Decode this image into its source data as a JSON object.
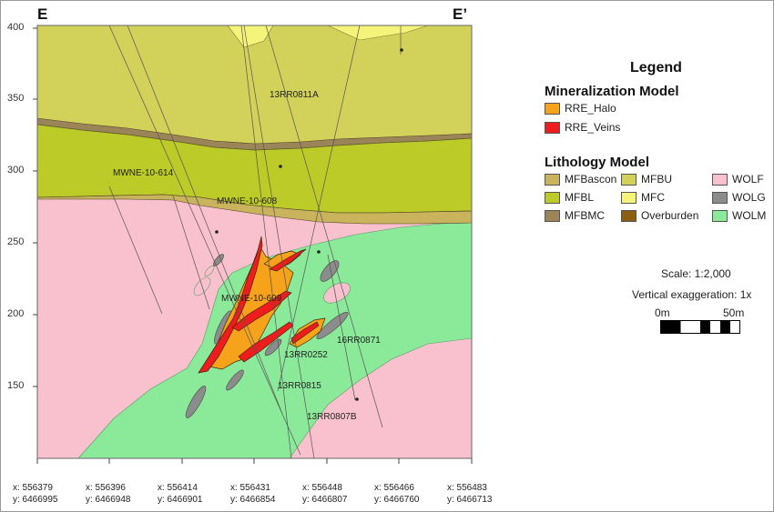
{
  "section": {
    "left_label": "E",
    "right_label": "E’"
  },
  "y_axis": {
    "ticks": [
      "400",
      "350",
      "300",
      "250",
      "200",
      "150"
    ]
  },
  "x_coords": [
    {
      "x": "x: 556379",
      "y": "y: 6466995"
    },
    {
      "x": "x: 556396",
      "y": "y: 6466948"
    },
    {
      "x": "x: 556414",
      "y": "y: 6466901"
    },
    {
      "x": "x: 556431",
      "y": "y: 6466854"
    },
    {
      "x": "x: 556448",
      "y": "y: 6466807"
    },
    {
      "x": "x: 556466",
      "y": "y: 6466760"
    },
    {
      "x": "x: 556483",
      "y": "y: 6466713"
    }
  ],
  "drillholes": [
    {
      "name": "13RR0811A"
    },
    {
      "name": "MWNE-10-614"
    },
    {
      "name": "MWNE-10-608"
    },
    {
      "name": "MWNE-10-609"
    },
    {
      "name": "16RR0871"
    },
    {
      "name": "13RR0252"
    },
    {
      "name": "13RR0815"
    },
    {
      "name": "13RR0807B"
    }
  ],
  "legend": {
    "title": "Legend",
    "mineralization": {
      "title": "Mineralization Model",
      "items": [
        {
          "label": "RRE_Halo",
          "color": "#f7a21b"
        },
        {
          "label": "RRE_Veins",
          "color": "#ee1c1c"
        }
      ]
    },
    "lithology": {
      "title": "Lithology Model",
      "items": [
        {
          "label": "MFBascon",
          "color": "#c9b35c"
        },
        {
          "label": "MFBL",
          "color": "#bccb27"
        },
        {
          "label": "MFBMC",
          "color": "#9b8458"
        },
        {
          "label": "MFBU",
          "color": "#d2d15a"
        },
        {
          "label": "MFC",
          "color": "#f4f47a"
        },
        {
          "label": "Overburden",
          "color": "#8b5e12"
        },
        {
          "label": "WOLF",
          "color": "#f9c0cd"
        },
        {
          "label": "WOLG",
          "color": "#8c8c8c"
        },
        {
          "label": "WOLM",
          "color": "#8be99a"
        }
      ]
    }
  },
  "scale": {
    "text": "Scale: 1:2,000",
    "vertical": "Vertical exaggeration: 1x",
    "bar_start": "0m",
    "bar_end": "50m"
  }
}
